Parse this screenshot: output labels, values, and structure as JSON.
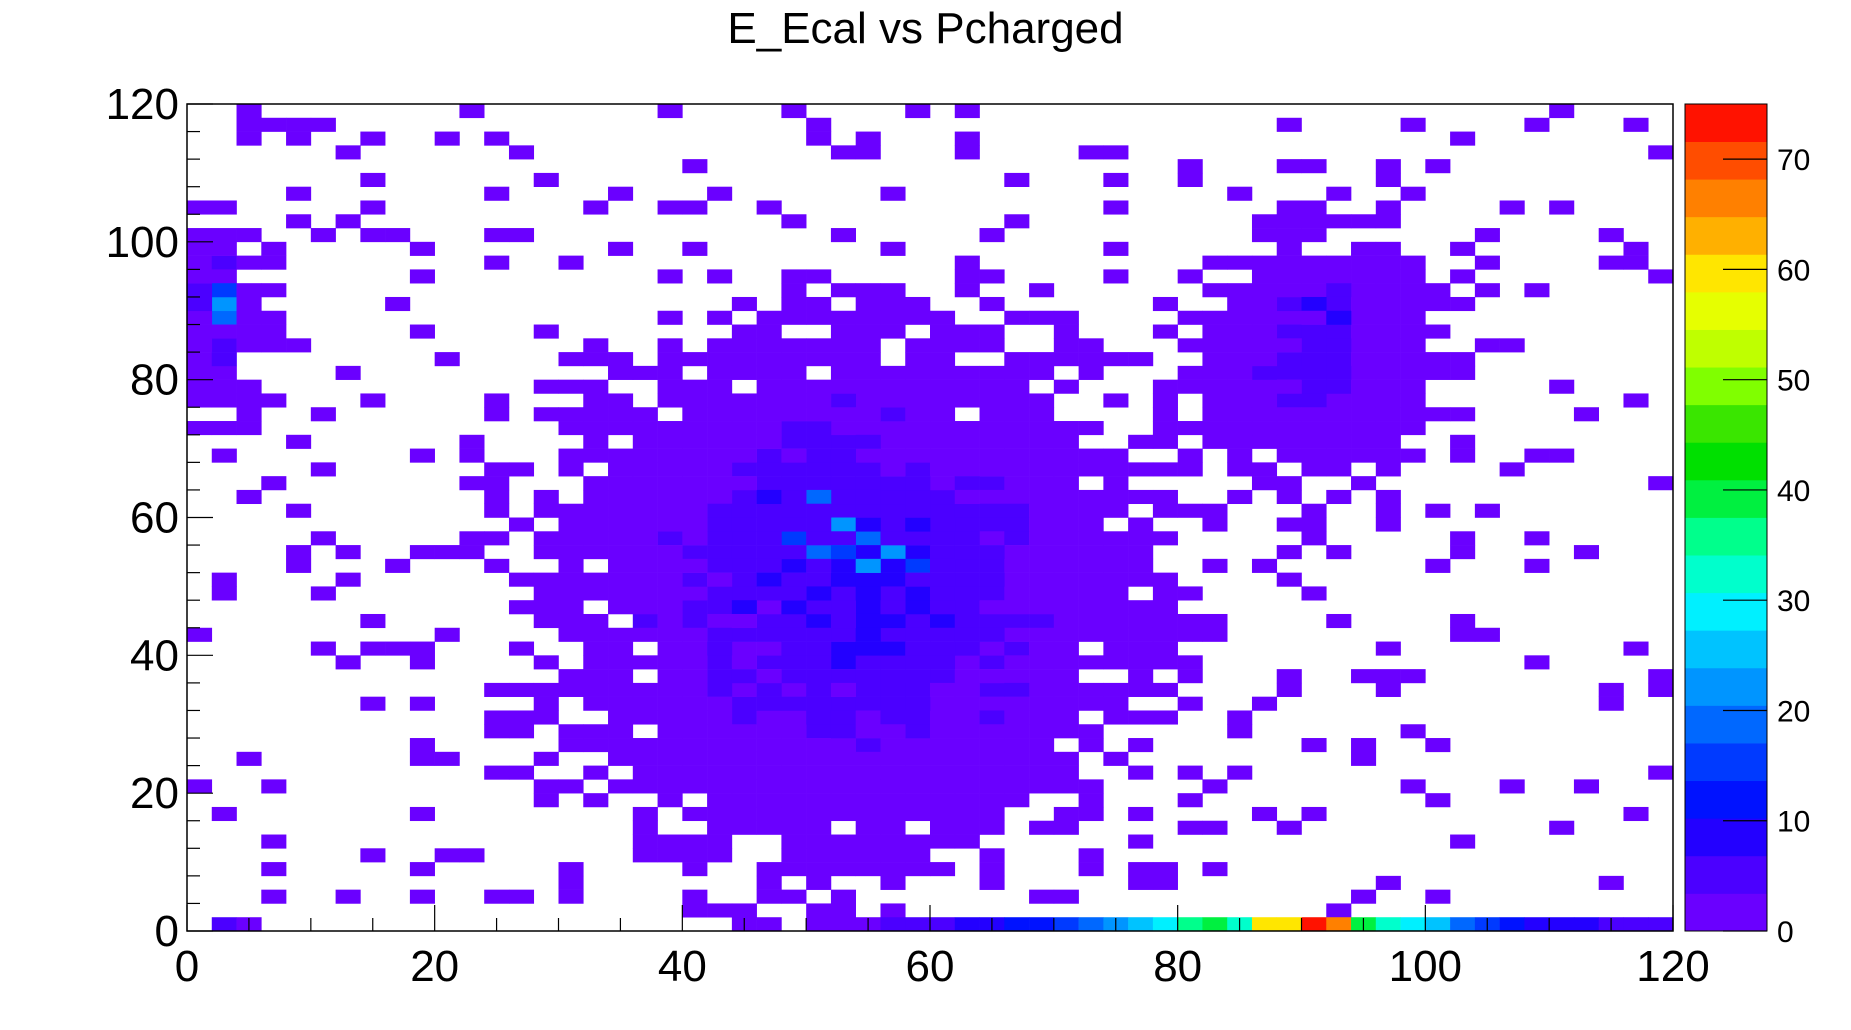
{
  "chart_data": {
    "type": "heatmap",
    "title": "E_Ecal vs Pcharged",
    "xlabel": "",
    "ylabel": "",
    "xlim": [
      0,
      120
    ],
    "ylim": [
      0,
      120
    ],
    "x_ticks": [
      "0",
      "20",
      "40",
      "60",
      "80",
      "100",
      "120"
    ],
    "y_ticks": [
      "0",
      "20",
      "40",
      "60",
      "80",
      "100",
      "120"
    ],
    "colorbar": {
      "range": [
        0,
        75
      ],
      "ticks": [
        "0",
        "10",
        "20",
        "30",
        "40",
        "50",
        "60",
        "70"
      ]
    },
    "grid": false,
    "legend": "none",
    "bins_x": 60,
    "bins_y": 60,
    "axis_bins": [
      {
        "x": 3,
        "value": 4
      },
      {
        "x": 5,
        "value": 3
      },
      {
        "x": 45,
        "value": 2
      },
      {
        "x": 47,
        "value": 2
      },
      {
        "x": 51,
        "value": 3
      },
      {
        "x": 53,
        "value": 3
      },
      {
        "x": 55,
        "value": 3
      },
      {
        "x": 57,
        "value": 4
      },
      {
        "x": 59,
        "value": 5
      },
      {
        "x": 61,
        "value": 6
      },
      {
        "x": 63,
        "value": 7
      },
      {
        "x": 65,
        "value": 9
      },
      {
        "x": 67,
        "value": 11
      },
      {
        "x": 69,
        "value": 13
      },
      {
        "x": 71,
        "value": 16
      },
      {
        "x": 73,
        "value": 20
      },
      {
        "x": 75,
        "value": 23
      },
      {
        "x": 77,
        "value": 25
      },
      {
        "x": 79,
        "value": 29
      },
      {
        "x": 81,
        "value": 35
      },
      {
        "x": 83,
        "value": 38
      },
      {
        "x": 85,
        "value": 32
      },
      {
        "x": 87,
        "value": 58
      },
      {
        "x": 89,
        "value": 58
      },
      {
        "x": 91,
        "value": 72
      },
      {
        "x": 93,
        "value": 66
      },
      {
        "x": 95,
        "value": 38
      },
      {
        "x": 97,
        "value": 33
      },
      {
        "x": 99,
        "value": 30
      },
      {
        "x": 101,
        "value": 25
      },
      {
        "x": 103,
        "value": 20
      },
      {
        "x": 105,
        "value": 14
      },
      {
        "x": 107,
        "value": 12
      },
      {
        "x": 109,
        "value": 10
      },
      {
        "x": 111,
        "value": 8
      },
      {
        "x": 113,
        "value": 7
      },
      {
        "x": 115,
        "value": 6
      },
      {
        "x": 117,
        "value": 5
      },
      {
        "x": 119,
        "value": 4
      }
    ],
    "peak_bins": [
      {
        "x": 51,
        "y": 63,
        "value": 20
      },
      {
        "x": 53,
        "y": 59,
        "value": 21
      },
      {
        "x": 55,
        "y": 57,
        "value": 19
      },
      {
        "x": 51,
        "y": 55,
        "value": 18
      },
      {
        "x": 57,
        "y": 55,
        "value": 22
      },
      {
        "x": 55,
        "y": 53,
        "value": 23
      },
      {
        "x": 53,
        "y": 55,
        "value": 17
      },
      {
        "x": 49,
        "y": 57,
        "value": 14
      },
      {
        "x": 59,
        "y": 53,
        "value": 16
      },
      {
        "x": 3,
        "y": 91,
        "value": 22
      },
      {
        "x": 3,
        "y": 89,
        "value": 20
      },
      {
        "x": 3,
        "y": 93,
        "value": 14
      },
      {
        "x": 93,
        "y": 89,
        "value": 10
      },
      {
        "x": 91,
        "y": 91,
        "value": 9
      }
    ]
  }
}
